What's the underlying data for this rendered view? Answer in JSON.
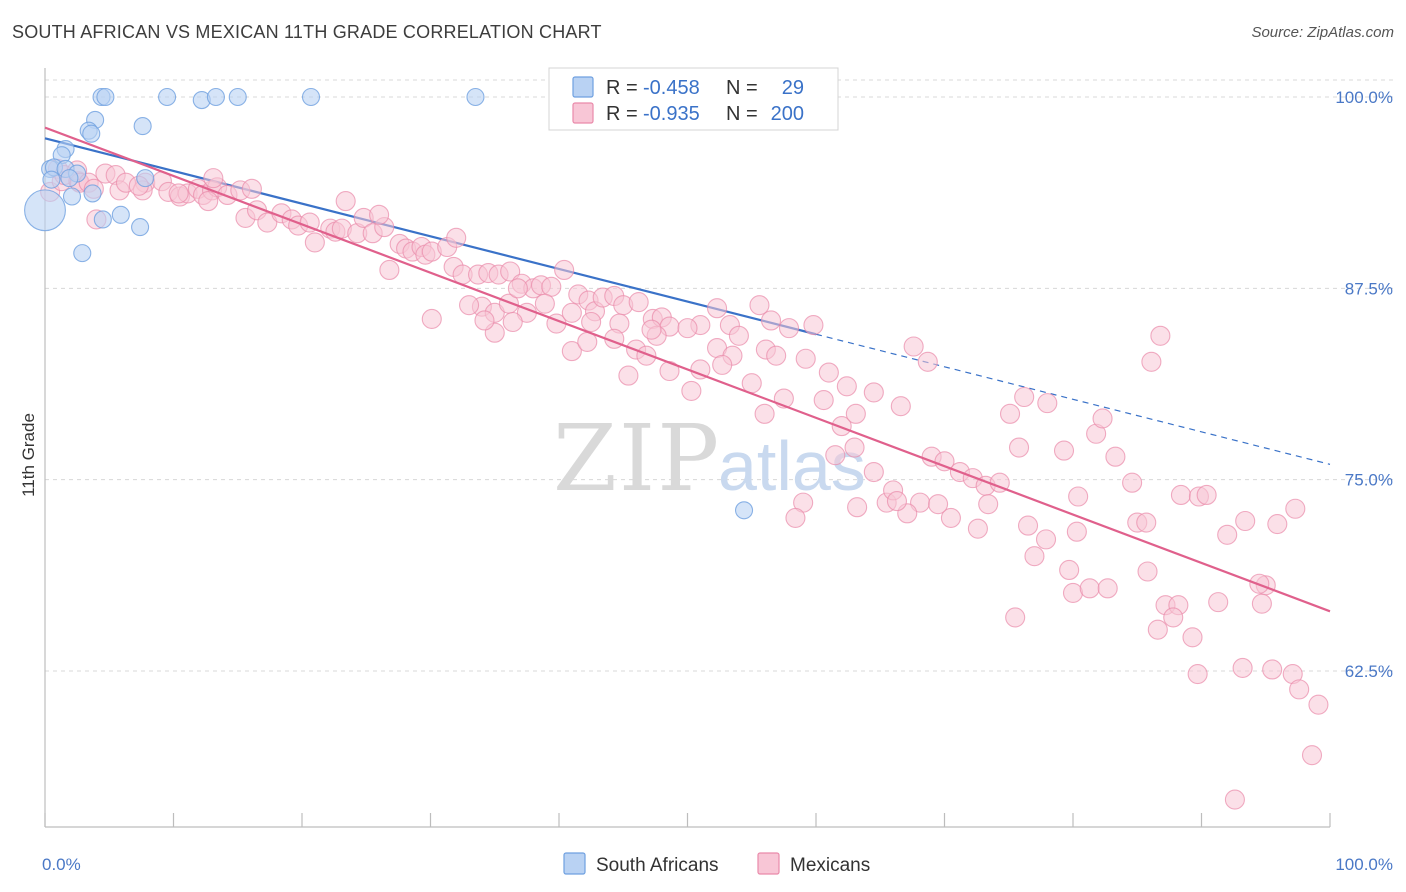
{
  "title": "SOUTH AFRICAN VS MEXICAN 11TH GRADE CORRELATION CHART",
  "source": "Source: ZipAtlas.com",
  "watermark": {
    "zip": "ZIP",
    "atlas": "atlas"
  },
  "colors": {
    "south_africans": "#6fa0e0",
    "south_africans_fill": "#b9d2f3",
    "south_africans_line": "#3a72c8",
    "mexicans": "#e98aaa",
    "mexicans_fill": "#f8c6d6",
    "mexicans_line": "#e0608c",
    "value_blue": "#3a72c8",
    "grid": "#d8d8d8"
  },
  "legend_top": {
    "rows": [
      {
        "r_label": "R =",
        "r_value": "-0.458",
        "n_label": "N =",
        "n_value": "29"
      },
      {
        "r_label": "R =",
        "r_value": "-0.935",
        "n_label": "N =",
        "n_value": "200"
      }
    ]
  },
  "legend_bottom": [
    "South Africans",
    "Mexicans"
  ],
  "chart_data": {
    "type": "scatter",
    "title": "SOUTH AFRICAN VS MEXICAN 11TH GRADE CORRELATION CHART",
    "xlabel": "",
    "ylabel": "11th Grade",
    "xlim": [
      0,
      100
    ],
    "ylim": [
      52.5,
      101.5
    ],
    "x_tick_labels": [
      "0.0%",
      "100.0%"
    ],
    "y_ticks": [
      {
        "value": 100.0,
        "label": "100.0%"
      },
      {
        "value": 87.5,
        "label": "87.5%"
      },
      {
        "value": 75.0,
        "label": "75.0%"
      },
      {
        "value": 62.5,
        "label": "62.5%"
      }
    ],
    "series": [
      {
        "name": "South Africans",
        "R": -0.458,
        "N": 29,
        "trend": {
          "x0": 0,
          "y0": 97.3,
          "x1": 60,
          "y1": 84.5,
          "dash_to_x": 100,
          "dash_to_y": 76.0
        },
        "points": [
          [
            4.4,
            100.0
          ],
          [
            4.7,
            100.0
          ],
          [
            9.5,
            100.0
          ],
          [
            12.2,
            99.8
          ],
          [
            13.3,
            100.0
          ],
          [
            15.0,
            100.0
          ],
          [
            20.7,
            100.0
          ],
          [
            33.5,
            100.0
          ],
          [
            3.9,
            98.5
          ],
          [
            7.6,
            98.1
          ],
          [
            3.4,
            97.8
          ],
          [
            3.6,
            97.6
          ],
          [
            1.6,
            96.6
          ],
          [
            1.3,
            96.2
          ],
          [
            0.4,
            95.3
          ],
          [
            0.7,
            95.4
          ],
          [
            1.6,
            95.3
          ],
          [
            2.5,
            95.0
          ],
          [
            1.9,
            94.7
          ],
          [
            7.8,
            94.7
          ],
          [
            0.5,
            94.6
          ],
          [
            3.7,
            93.7
          ],
          [
            2.1,
            93.5
          ],
          [
            0.0,
            92.6
          ],
          [
            5.9,
            92.3
          ],
          [
            4.5,
            92.0
          ],
          [
            7.4,
            91.5
          ],
          [
            2.9,
            89.8
          ],
          [
            54.4,
            73.0
          ]
        ],
        "sizes": [
          1,
          1,
          1,
          1,
          1,
          1,
          1,
          1,
          1,
          1,
          1,
          1,
          1,
          1,
          1,
          1,
          1,
          1,
          1,
          1,
          1,
          1,
          1,
          2.4,
          1,
          1,
          1,
          1,
          1
        ]
      },
      {
        "name": "Mexicans",
        "R": -0.935,
        "N": 200,
        "trend": {
          "x0": 0,
          "y0": 98.0,
          "x1": 100,
          "y1": 66.4
        },
        "points": [
          [
            0.4,
            93.8
          ],
          [
            1.0,
            95.3
          ],
          [
            1.3,
            94.5
          ],
          [
            1.5,
            94.9
          ],
          [
            2.6,
            94.5
          ],
          [
            2.5,
            95.2
          ],
          [
            2.7,
            94.4
          ],
          [
            3.4,
            94.4
          ],
          [
            3.8,
            94.0
          ],
          [
            4.7,
            95.0
          ],
          [
            5.5,
            94.9
          ],
          [
            5.8,
            93.9
          ],
          [
            6.3,
            94.4
          ],
          [
            7.8,
            94.4
          ],
          [
            7.6,
            93.9
          ],
          [
            9.1,
            94.5
          ],
          [
            9.6,
            93.8
          ],
          [
            10.5,
            93.5
          ],
          [
            11.1,
            93.7
          ],
          [
            11.9,
            94.0
          ],
          [
            12.3,
            93.6
          ],
          [
            13.0,
            93.9
          ],
          [
            13.4,
            94.1
          ],
          [
            14.2,
            93.6
          ],
          [
            15.2,
            93.9
          ],
          [
            4.0,
            92.0
          ],
          [
            13.1,
            94.7
          ],
          [
            10.4,
            93.7
          ],
          [
            7.3,
            94.2
          ],
          [
            12.7,
            93.2
          ],
          [
            15.6,
            92.1
          ],
          [
            16.1,
            94.0
          ],
          [
            16.5,
            92.6
          ],
          [
            17.3,
            91.8
          ],
          [
            18.4,
            92.4
          ],
          [
            19.2,
            92.0
          ],
          [
            19.7,
            91.6
          ],
          [
            20.6,
            91.8
          ],
          [
            21.0,
            90.5
          ],
          [
            22.2,
            91.4
          ],
          [
            22.6,
            91.2
          ],
          [
            23.1,
            91.4
          ],
          [
            23.4,
            93.2
          ],
          [
            24.3,
            91.1
          ],
          [
            24.8,
            92.1
          ],
          [
            25.5,
            91.1
          ],
          [
            26.4,
            91.5
          ],
          [
            26.0,
            92.3
          ],
          [
            26.8,
            88.7
          ],
          [
            27.6,
            90.4
          ],
          [
            28.1,
            90.1
          ],
          [
            28.6,
            89.9
          ],
          [
            29.3,
            90.2
          ],
          [
            29.6,
            89.7
          ],
          [
            30.1,
            89.9
          ],
          [
            31.3,
            90.2
          ],
          [
            31.8,
            88.9
          ],
          [
            32.5,
            88.4
          ],
          [
            32.0,
            90.8
          ],
          [
            33.7,
            88.4
          ],
          [
            34.5,
            88.5
          ],
          [
            35.3,
            88.4
          ],
          [
            36.2,
            88.6
          ],
          [
            37.1,
            87.8
          ],
          [
            38.0,
            87.5
          ],
          [
            38.6,
            87.7
          ],
          [
            39.4,
            87.6
          ],
          [
            40.4,
            88.7
          ],
          [
            41.5,
            87.1
          ],
          [
            42.3,
            86.7
          ],
          [
            42.8,
            86.0
          ],
          [
            43.4,
            86.9
          ],
          [
            44.3,
            87.0
          ],
          [
            45.0,
            86.4
          ],
          [
            34.0,
            86.3
          ],
          [
            35.0,
            85.9
          ],
          [
            36.1,
            86.5
          ],
          [
            37.5,
            85.9
          ],
          [
            38.9,
            86.5
          ],
          [
            39.8,
            85.2
          ],
          [
            41.0,
            85.9
          ],
          [
            44.7,
            85.2
          ],
          [
            46.2,
            86.6
          ],
          [
            47.3,
            85.5
          ],
          [
            48.0,
            85.6
          ],
          [
            48.6,
            85.0
          ],
          [
            51.0,
            85.1
          ],
          [
            52.3,
            86.2
          ],
          [
            53.3,
            85.1
          ],
          [
            56.5,
            85.4
          ],
          [
            57.9,
            84.9
          ],
          [
            59.8,
            85.1
          ],
          [
            55.6,
            86.4
          ],
          [
            42.5,
            85.3
          ],
          [
            30.1,
            85.5
          ],
          [
            35.0,
            84.6
          ],
          [
            41.0,
            83.4
          ],
          [
            44.3,
            84.2
          ],
          [
            46.0,
            83.5
          ],
          [
            47.6,
            84.4
          ],
          [
            47.2,
            84.8
          ],
          [
            50.0,
            84.9
          ],
          [
            52.3,
            83.6
          ],
          [
            53.5,
            83.1
          ],
          [
            54.0,
            84.4
          ],
          [
            56.1,
            83.5
          ],
          [
            56.9,
            83.1
          ],
          [
            59.2,
            82.9
          ],
          [
            61.0,
            82.0
          ],
          [
            62.4,
            81.1
          ],
          [
            56.0,
            79.3
          ],
          [
            55.0,
            81.3
          ],
          [
            51.0,
            82.2
          ],
          [
            52.7,
            82.5
          ],
          [
            50.3,
            80.8
          ],
          [
            46.8,
            83.1
          ],
          [
            48.6,
            82.1
          ],
          [
            42.2,
            84.0
          ],
          [
            36.8,
            87.5
          ],
          [
            36.4,
            85.3
          ],
          [
            33.0,
            86.4
          ],
          [
            34.2,
            85.4
          ],
          [
            45.4,
            81.8
          ],
          [
            57.5,
            80.3
          ],
          [
            60.6,
            80.2
          ],
          [
            62.0,
            78.5
          ],
          [
            63.1,
            79.3
          ],
          [
            64.5,
            80.7
          ],
          [
            66.6,
            79.8
          ],
          [
            67.6,
            83.7
          ],
          [
            68.7,
            82.7
          ],
          [
            63.0,
            77.1
          ],
          [
            61.5,
            76.6
          ],
          [
            64.5,
            75.5
          ],
          [
            65.5,
            73.5
          ],
          [
            66.0,
            74.3
          ],
          [
            68.1,
            73.5
          ],
          [
            67.1,
            72.8
          ],
          [
            69.0,
            76.5
          ],
          [
            70.0,
            76.2
          ],
          [
            71.2,
            75.5
          ],
          [
            72.2,
            75.1
          ],
          [
            73.2,
            74.6
          ],
          [
            74.3,
            74.8
          ],
          [
            75.8,
            77.1
          ],
          [
            76.2,
            80.4
          ],
          [
            75.1,
            79.3
          ],
          [
            78.0,
            80.0
          ],
          [
            79.3,
            76.9
          ],
          [
            80.4,
            73.9
          ],
          [
            81.8,
            78.0
          ],
          [
            82.3,
            79.0
          ],
          [
            83.3,
            76.5
          ],
          [
            84.6,
            74.8
          ],
          [
            86.1,
            82.7
          ],
          [
            86.8,
            84.4
          ],
          [
            88.4,
            74.0
          ],
          [
            89.8,
            73.9
          ],
          [
            90.4,
            74.0
          ],
          [
            92.0,
            71.4
          ],
          [
            93.4,
            72.3
          ],
          [
            95.0,
            68.1
          ],
          [
            95.9,
            72.1
          ],
          [
            97.3,
            73.1
          ],
          [
            85.0,
            72.2
          ],
          [
            85.7,
            72.2
          ],
          [
            80.3,
            71.6
          ],
          [
            77.9,
            71.1
          ],
          [
            76.5,
            72.0
          ],
          [
            73.4,
            73.4
          ],
          [
            72.6,
            71.8
          ],
          [
            70.5,
            72.5
          ],
          [
            69.5,
            73.4
          ],
          [
            66.3,
            73.6
          ],
          [
            63.2,
            73.2
          ],
          [
            59.0,
            73.5
          ],
          [
            58.4,
            72.5
          ],
          [
            77.0,
            70.0
          ],
          [
            75.5,
            66.0
          ],
          [
            79.7,
            69.1
          ],
          [
            80.0,
            67.6
          ],
          [
            81.3,
            67.9
          ],
          [
            82.7,
            67.9
          ],
          [
            85.8,
            69.0
          ],
          [
            87.2,
            66.8
          ],
          [
            88.2,
            66.8
          ],
          [
            89.7,
            62.3
          ],
          [
            91.3,
            67.0
          ],
          [
            93.2,
            62.7
          ],
          [
            94.5,
            68.2
          ],
          [
            95.5,
            62.6
          ],
          [
            97.1,
            62.3
          ],
          [
            97.6,
            61.3
          ],
          [
            99.1,
            60.3
          ],
          [
            98.6,
            57.0
          ],
          [
            92.6,
            54.1
          ],
          [
            86.6,
            65.2
          ],
          [
            87.8,
            66.0
          ],
          [
            89.3,
            64.7
          ],
          [
            94.7,
            66.9
          ]
        ]
      }
    ]
  }
}
